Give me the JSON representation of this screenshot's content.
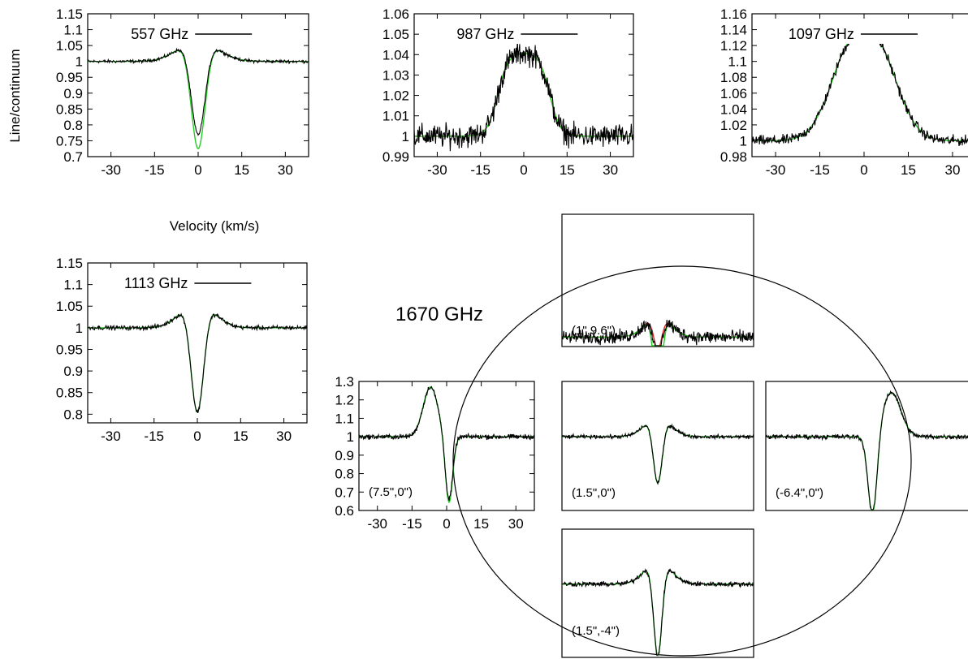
{
  "ylabel": "Line/continuum",
  "xlabel": "Velocity (km/s)",
  "big_label": "1670 GHz",
  "colors": {
    "observed": "#000000",
    "model_green": "#22cc22",
    "model_red": "#dd2222"
  },
  "x_ticks": [
    "-30",
    "-15",
    "0",
    "15",
    "30"
  ],
  "chart_data": [
    {
      "type": "line",
      "title": "557 GHz",
      "xlim": [
        -38,
        38
      ],
      "ylim": [
        0.7,
        1.15
      ],
      "xlabel": "Velocity (km/s)",
      "ylabel": "Line/continuum",
      "y_ticks": [
        "0.7",
        "0.75",
        "0.8",
        "0.85",
        "0.9",
        "0.95",
        "1",
        "1.05",
        "1.1",
        "1.15"
      ],
      "profile": {
        "kind": "pcygni",
        "emit_amp": 0.07,
        "emit_sigma": 6.5,
        "absorb_amp": 0.3,
        "absorb_sigma": 2.4,
        "noise": 0.003
      },
      "models": [
        {
          "color": "green",
          "absorb_scale": 1.15
        }
      ],
      "series": [
        {
          "name": "557 GHz",
          "values": "observed spectrum"
        }
      ]
    },
    {
      "type": "line",
      "title": "987 GHz",
      "xlim": [
        -38,
        38
      ],
      "ylim": [
        0.99,
        1.06
      ],
      "y_ticks": [
        "0.99",
        "1",
        "1.01",
        "1.02",
        "1.03",
        "1.04",
        "1.05",
        "1.06"
      ],
      "profile": {
        "kind": "flattop",
        "amp": 0.041,
        "half_width": 9,
        "edge": 1.8,
        "noise": 0.0035
      },
      "models": [
        {
          "color": "red"
        },
        {
          "color": "green"
        }
      ],
      "series": [
        {
          "name": "987 GHz",
          "values": "observed spectrum"
        }
      ]
    },
    {
      "type": "line",
      "title": "1097 GHz",
      "xlim": [
        -38,
        38
      ],
      "ylim": [
        0.98,
        1.16
      ],
      "y_ticks": [
        "0.98",
        "1",
        "1.02",
        "1.04",
        "1.06",
        "1.08",
        "1.1",
        "1.12",
        "1.14",
        "1.16"
      ],
      "profile": {
        "kind": "bump",
        "amp": 0.13,
        "sigma": 7.5,
        "flat": 3,
        "noise": 0.004
      },
      "models": [
        {
          "color": "green"
        }
      ],
      "series": [
        {
          "name": "1097 GHz",
          "values": "observed spectrum"
        }
      ]
    },
    {
      "type": "line",
      "title": "1113 GHz",
      "xlim": [
        -38,
        38
      ],
      "ylim": [
        0.78,
        1.15
      ],
      "y_ticks": [
        "0.8",
        "0.85",
        "0.9",
        "0.95",
        "1",
        "1.05",
        "1.1",
        "1.15"
      ],
      "profile": {
        "kind": "pcygni",
        "emit_amp": 0.065,
        "emit_sigma": 5.5,
        "absorb_amp": 0.26,
        "absorb_sigma": 2.2,
        "noise": 0.003
      },
      "models": [
        {
          "color": "green",
          "absorb_scale": 1.0
        }
      ],
      "series": [
        {
          "name": "1113 GHz",
          "values": "observed spectrum"
        }
      ]
    },
    {
      "type": "line",
      "title": "",
      "label": "(7.5\",0\")",
      "xlim": [
        -38,
        38
      ],
      "ylim": [
        0.6,
        1.3
      ],
      "y_ticks": [
        "0.6",
        "0.7",
        "0.8",
        "0.9",
        "1",
        "1.1",
        "1.2",
        "1.3"
      ],
      "show_axes": true,
      "profile": {
        "kind": "pcygni_shift",
        "emit_amp": 0.27,
        "emit_center": -7,
        "emit_sigma": 3.2,
        "absorb_amp": 0.35,
        "absorb_center": 1,
        "absorb_sigma": 1.6,
        "noise": 0.008
      },
      "models": [
        {
          "color": "green",
          "absorb_scale": 1.05
        }
      ]
    },
    {
      "type": "line",
      "title": "",
      "label": "(1\",9.6\")",
      "xlim": [
        -38,
        38
      ],
      "ylim": [
        0.6,
        1.3
      ],
      "show_axes": false,
      "profile": {
        "kind": "pcygni",
        "emit_amp": 0.11,
        "emit_sigma": 5,
        "absorb_amp": 0.22,
        "absorb_sigma": 1.6,
        "noise": 0.022
      },
      "models": [
        {
          "color": "red",
          "absorb_scale": 0.8
        },
        {
          "color": "green",
          "absorb_scale": 1.9
        }
      ]
    },
    {
      "type": "line",
      "title": "",
      "label": "(1.5\",0\")",
      "xlim": [
        -38,
        38
      ],
      "ylim": [
        0.6,
        1.3
      ],
      "show_axes": false,
      "profile": {
        "kind": "pcygni",
        "emit_amp": 0.11,
        "emit_sigma": 5,
        "absorb_amp": 0.36,
        "absorb_sigma": 1.8,
        "noise": 0.006
      },
      "models": [
        {
          "color": "green",
          "absorb_scale": 1.0
        }
      ]
    },
    {
      "type": "line",
      "title": "",
      "label": "(-6.4\",0\")",
      "xlim": [
        -38,
        38
      ],
      "ylim": [
        0.6,
        1.3
      ],
      "show_axes": false,
      "profile": {
        "kind": "pcygni_shift",
        "emit_amp": 0.24,
        "emit_center": 9,
        "emit_sigma": 3.5,
        "absorb_amp": 0.45,
        "absorb_center": 2,
        "absorb_sigma": 1.7,
        "noise": 0.008
      },
      "models": [
        {
          "color": "green",
          "absorb_scale": 1.0
        }
      ]
    },
    {
      "type": "line",
      "title": "",
      "label": "(1.5\",-4\")",
      "xlim": [
        -38,
        38
      ],
      "ylim": [
        0.6,
        1.3
      ],
      "show_axes": false,
      "profile": {
        "kind": "pcygni",
        "emit_amp": 0.13,
        "emit_sigma": 5,
        "absorb_amp": 0.52,
        "absorb_sigma": 1.7,
        "noise": 0.008
      },
      "models": [
        {
          "color": "green",
          "absorb_scale": 1.0
        }
      ]
    }
  ]
}
